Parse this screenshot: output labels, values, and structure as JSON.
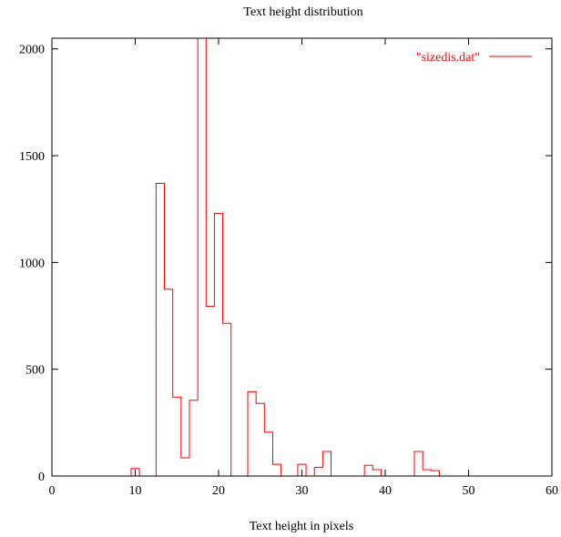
{
  "chart_data": {
    "type": "line",
    "title": "Text height distribution",
    "xlabel": "Text height in pixels",
    "ylabel": "",
    "xlim": [
      0,
      60
    ],
    "ylim": [
      0,
      2050
    ],
    "xticks": [
      0,
      10,
      20,
      30,
      40,
      50,
      60
    ],
    "yticks": [
      0,
      500,
      1000,
      1500,
      2000
    ],
    "grid": false,
    "legend_position": "top-right",
    "step": "histeps",
    "series": [
      {
        "name": "\"sizedis.dat\"",
        "color": "#ff0000",
        "x": [
          0,
          1,
          2,
          3,
          4,
          5,
          6,
          7,
          8,
          9,
          10,
          11,
          12,
          13,
          14,
          15,
          16,
          17,
          18,
          19,
          20,
          21,
          22,
          23,
          24,
          25,
          26,
          27,
          28,
          29,
          30,
          31,
          32,
          33,
          34,
          35,
          36,
          37,
          38,
          39,
          40,
          41,
          42,
          43,
          44,
          45,
          46,
          47,
          48,
          49,
          50,
          51,
          52,
          53,
          54,
          55,
          56,
          57,
          58,
          59,
          60
        ],
        "y": [
          0,
          0,
          0,
          0,
          0,
          0,
          0,
          0,
          0,
          0,
          35,
          0,
          0,
          1370,
          875,
          370,
          85,
          355,
          2050,
          795,
          1230,
          715,
          0,
          0,
          395,
          340,
          205,
          55,
          0,
          0,
          55,
          0,
          40,
          115,
          0,
          0,
          0,
          0,
          50,
          30,
          0,
          0,
          0,
          0,
          115,
          30,
          25,
          0,
          0,
          0,
          0,
          0,
          0,
          0,
          0,
          0,
          0,
          0,
          0,
          0,
          0
        ]
      }
    ]
  }
}
